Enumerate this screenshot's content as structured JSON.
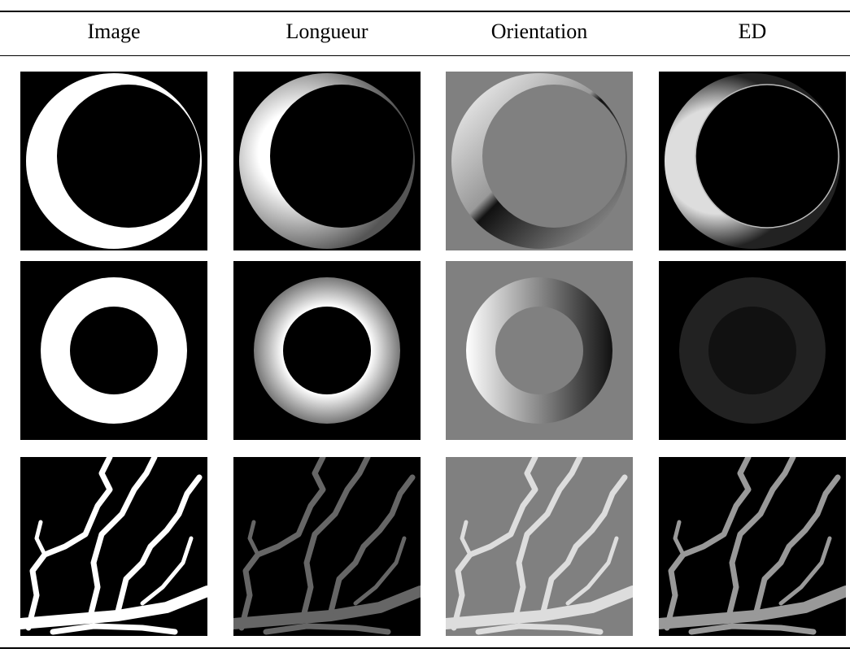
{
  "table": {
    "header": [
      "Image",
      "Longueur",
      "Orientation",
      "ED"
    ]
  }
}
